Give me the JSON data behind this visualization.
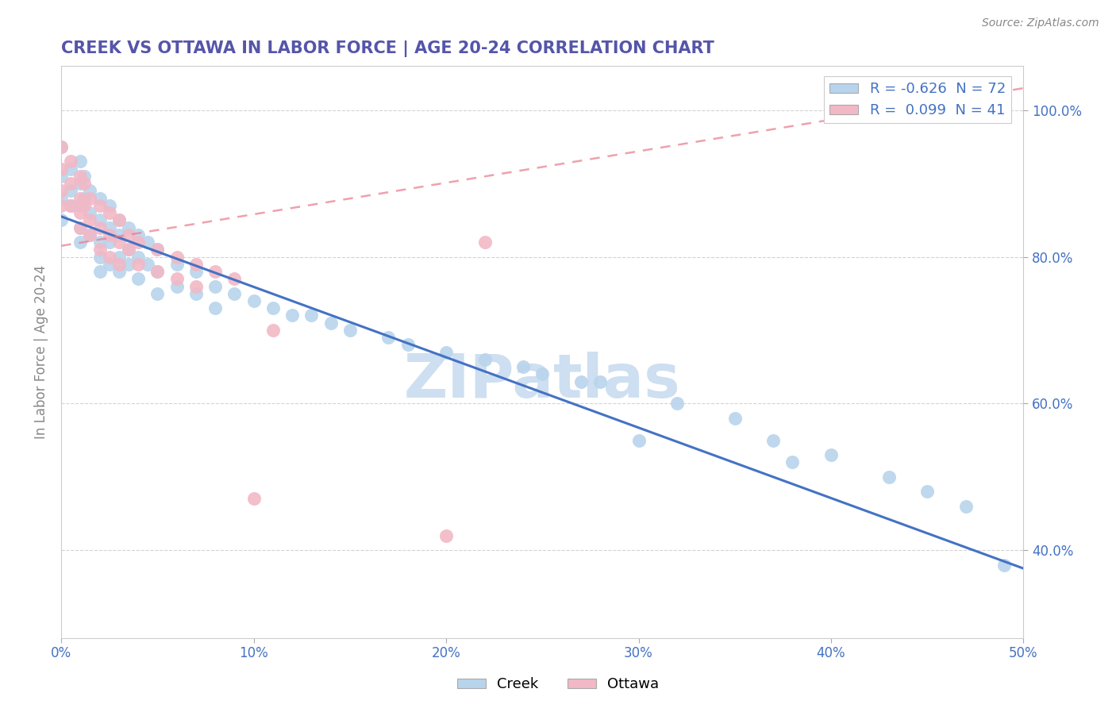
{
  "title": "CREEK VS OTTAWA IN LABOR FORCE | AGE 20-24 CORRELATION CHART",
  "source_text": "Source: ZipAtlas.com",
  "ylabel": "In Labor Force | Age 20-24",
  "xlim": [
    0.0,
    0.5
  ],
  "ylim": [
    0.28,
    1.06
  ],
  "xticks": [
    0.0,
    0.1,
    0.2,
    0.3,
    0.4,
    0.5
  ],
  "yticks": [
    0.4,
    0.6,
    0.8,
    1.0
  ],
  "creek_R": -0.626,
  "creek_N": 72,
  "ottawa_R": 0.099,
  "ottawa_N": 41,
  "creek_color": "#b8d4ec",
  "ottawa_color": "#f2b8c6",
  "creek_line_color": "#4472c4",
  "ottawa_line_color": "#e87a8a",
  "label_color": "#4472c4",
  "title_color": "#5555aa",
  "title_fontsize": 15,
  "watermark": "ZIPatlas",
  "watermark_color": "#cddff0",
  "legend_creek_label": "Creek",
  "legend_ottawa_label": "Ottawa",
  "creek_trend_x0": 0.0,
  "creek_trend_y0": 0.855,
  "creek_trend_x1": 0.5,
  "creek_trend_y1": 0.375,
  "ottawa_trend_x0": 0.0,
  "ottawa_trend_y0": 0.815,
  "ottawa_trend_x1": 0.5,
  "ottawa_trend_y1": 1.03,
  "creek_points_x": [
    0.0,
    0.0,
    0.0,
    0.0,
    0.005,
    0.005,
    0.005,
    0.01,
    0.01,
    0.01,
    0.01,
    0.01,
    0.012,
    0.012,
    0.015,
    0.015,
    0.015,
    0.02,
    0.02,
    0.02,
    0.02,
    0.02,
    0.025,
    0.025,
    0.025,
    0.025,
    0.03,
    0.03,
    0.03,
    0.03,
    0.035,
    0.035,
    0.035,
    0.04,
    0.04,
    0.04,
    0.045,
    0.045,
    0.05,
    0.05,
    0.05,
    0.06,
    0.06,
    0.07,
    0.07,
    0.08,
    0.08,
    0.09,
    0.1,
    0.11,
    0.12,
    0.13,
    0.14,
    0.15,
    0.17,
    0.18,
    0.2,
    0.22,
    0.24,
    0.25,
    0.27,
    0.28,
    0.3,
    0.32,
    0.35,
    0.37,
    0.38,
    0.4,
    0.43,
    0.45,
    0.47,
    0.49
  ],
  "creek_points_y": [
    0.95,
    0.91,
    0.88,
    0.85,
    0.92,
    0.89,
    0.87,
    0.93,
    0.9,
    0.87,
    0.84,
    0.82,
    0.91,
    0.88,
    0.89,
    0.86,
    0.83,
    0.88,
    0.85,
    0.82,
    0.8,
    0.78,
    0.87,
    0.84,
    0.82,
    0.79,
    0.85,
    0.83,
    0.8,
    0.78,
    0.84,
    0.81,
    0.79,
    0.83,
    0.8,
    0.77,
    0.82,
    0.79,
    0.81,
    0.78,
    0.75,
    0.79,
    0.76,
    0.78,
    0.75,
    0.76,
    0.73,
    0.75,
    0.74,
    0.73,
    0.72,
    0.72,
    0.71,
    0.7,
    0.69,
    0.68,
    0.67,
    0.66,
    0.65,
    0.64,
    0.63,
    0.63,
    0.55,
    0.6,
    0.58,
    0.55,
    0.52,
    0.53,
    0.5,
    0.48,
    0.46,
    0.38
  ],
  "ottawa_points_x": [
    0.0,
    0.0,
    0.0,
    0.0,
    0.005,
    0.005,
    0.005,
    0.01,
    0.01,
    0.01,
    0.01,
    0.012,
    0.012,
    0.015,
    0.015,
    0.015,
    0.02,
    0.02,
    0.02,
    0.025,
    0.025,
    0.025,
    0.03,
    0.03,
    0.03,
    0.035,
    0.035,
    0.04,
    0.04,
    0.05,
    0.05,
    0.06,
    0.06,
    0.07,
    0.07,
    0.08,
    0.09,
    0.1,
    0.11,
    0.2,
    0.22
  ],
  "ottawa_points_y": [
    0.95,
    0.92,
    0.89,
    0.87,
    0.93,
    0.9,
    0.87,
    0.91,
    0.88,
    0.86,
    0.84,
    0.9,
    0.87,
    0.88,
    0.85,
    0.83,
    0.87,
    0.84,
    0.81,
    0.86,
    0.83,
    0.8,
    0.85,
    0.82,
    0.79,
    0.83,
    0.81,
    0.82,
    0.79,
    0.81,
    0.78,
    0.8,
    0.77,
    0.79,
    0.76,
    0.78,
    0.77,
    0.47,
    0.7,
    0.42,
    0.82
  ]
}
